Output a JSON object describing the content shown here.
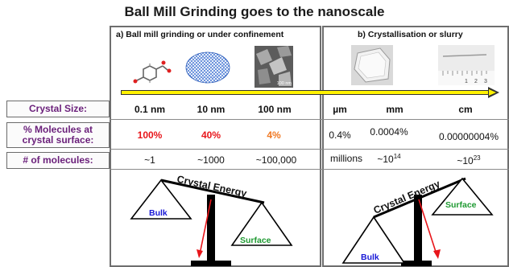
{
  "title": "Ball Mill Grinding goes to the nanoscale",
  "panels": {
    "a_title": "a) Ball mill grinding or under confinement",
    "b_title": "b) Crystallisation or slurry"
  },
  "images": {
    "scale_bar_label": "100 nm",
    "ruler_ticks": [
      "1",
      "2",
      "3"
    ]
  },
  "rows": {
    "crystal_size": {
      "label": "Crystal Size:",
      "values": [
        "0.1 nm",
        "10 nm",
        "100 nm",
        "µm",
        "mm",
        "cm"
      ]
    },
    "surface": {
      "label_line1": "% Molecules at",
      "label_line2": "crystal surface:",
      "values": [
        "100%",
        "40%",
        "4%",
        "0.4%",
        "0.0004%",
        "0.00000004%"
      ]
    },
    "molecules": {
      "label": "# of molecules:",
      "values": [
        "~1",
        "~1000",
        "~100,000",
        "millions"
      ],
      "sup_values": [
        {
          "base": "~10",
          "exp": "14"
        },
        {
          "base": "~10",
          "exp": "23"
        }
      ]
    }
  },
  "scales": {
    "left": {
      "beam_label": "Crystal Energy",
      "left_pan": "Bulk",
      "right_pan": "Surface"
    },
    "right": {
      "beam_label": "Crystal Energy",
      "left_pan": "Bulk",
      "right_pan": "Surface"
    }
  },
  "colors": {
    "row_label": "#6a1f7a",
    "red": "#e8151a",
    "orange": "#f07822",
    "bulk": "#1717d6",
    "surface": "#1f9a32",
    "arrow_fill": "#fff200"
  }
}
